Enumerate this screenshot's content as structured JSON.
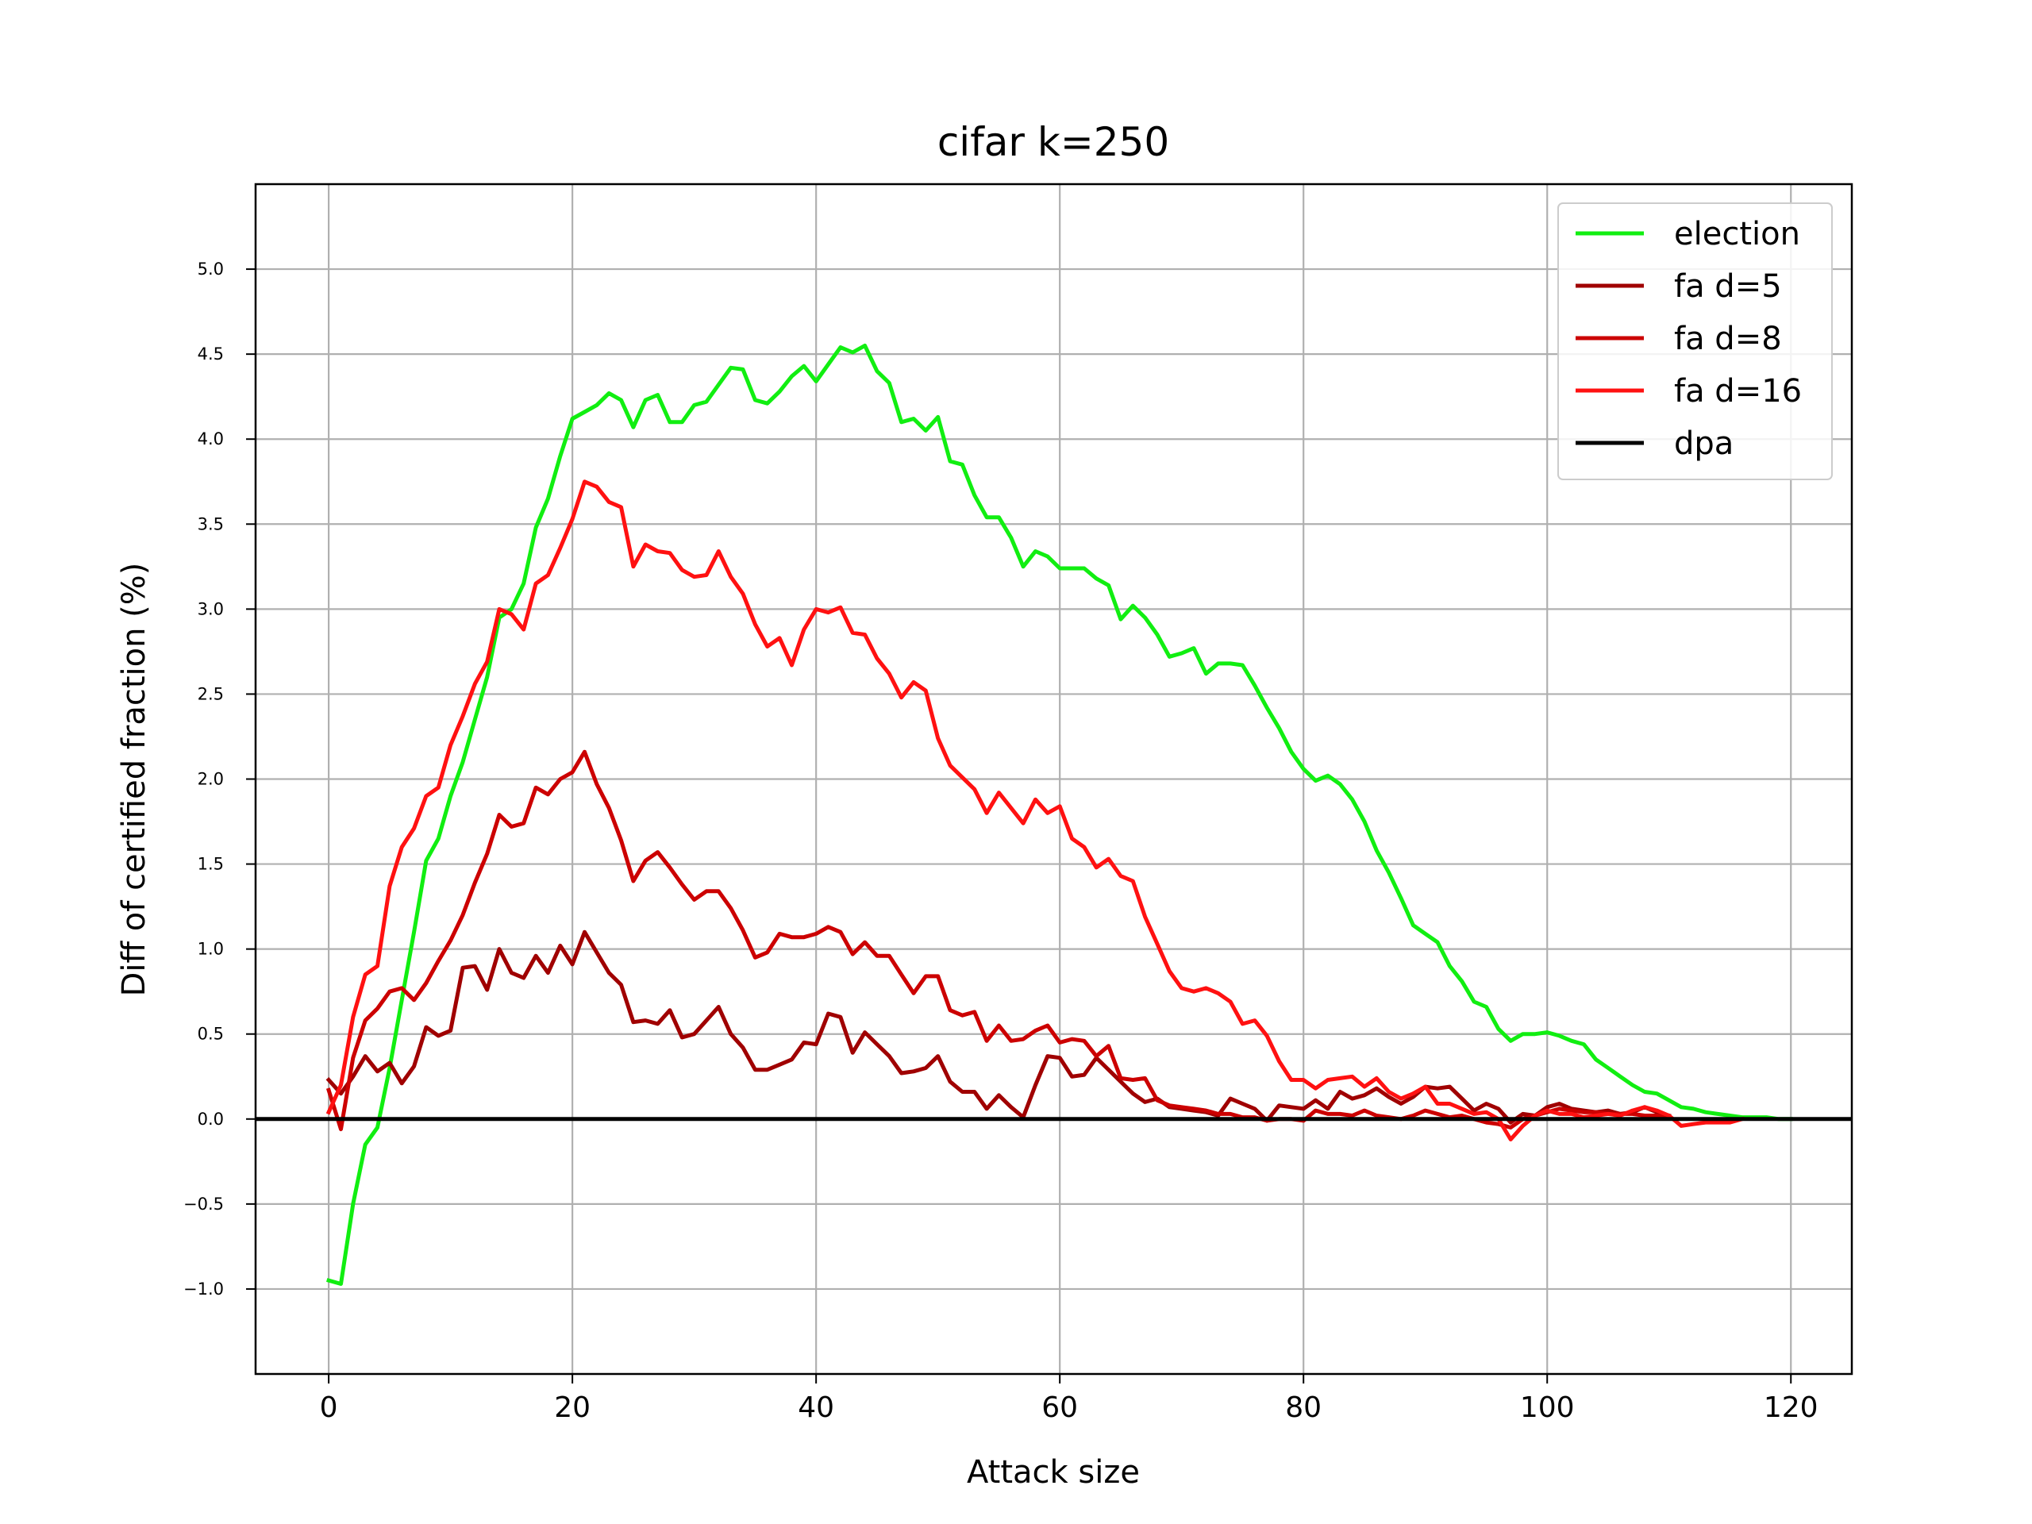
{
  "chart_data": {
    "type": "line",
    "title": "cifar k=250",
    "xlabel": "Attack size",
    "ylabel": "Diff of certified fraction (%)",
    "xlim": [
      -6,
      125
    ],
    "ylim": [
      -1.5,
      5.5
    ],
    "xticks": [
      0,
      20,
      40,
      60,
      80,
      100,
      120
    ],
    "xtick_labels": [
      "0",
      "20",
      "40",
      "60",
      "80",
      "100",
      "120"
    ],
    "yticks": [
      -1.0,
      -0.5,
      0.0,
      0.5,
      1.0,
      1.5,
      2.0,
      2.5,
      3.0,
      3.5,
      4.0,
      4.5,
      5.0
    ],
    "ytick_labels": [
      "−1.0",
      "−0.5",
      "0.0",
      "0.5",
      "1.0",
      "1.5",
      "2.0",
      "2.5",
      "3.0",
      "3.5",
      "4.0",
      "4.5",
      "5.0"
    ],
    "grid": true,
    "legend_position": "top-right",
    "series": [
      {
        "name": "election",
        "color": "#11ee11",
        "x": [
          0,
          1,
          2,
          3,
          4,
          5,
          6,
          7,
          8,
          9,
          10,
          11,
          12,
          13,
          14,
          15,
          16,
          17,
          18,
          19,
          20,
          21,
          22,
          23,
          24,
          25,
          26,
          27,
          28,
          29,
          30,
          31,
          32,
          33,
          34,
          35,
          36,
          37,
          38,
          39,
          40,
          41,
          42,
          43,
          44,
          45,
          46,
          47,
          48,
          49,
          50,
          51,
          52,
          53,
          54,
          55,
          56,
          57,
          58,
          59,
          60,
          61,
          62,
          63,
          64,
          65,
          66,
          67,
          68,
          69,
          70,
          71,
          72,
          73,
          74,
          75,
          76,
          77,
          78,
          79,
          80,
          81,
          82,
          83,
          84,
          85,
          86,
          87,
          88,
          89,
          90,
          91,
          92,
          93,
          94,
          95,
          96,
          97,
          98,
          99,
          100,
          101,
          102,
          103,
          104,
          105,
          106,
          107,
          108,
          109,
          110,
          111,
          112,
          113,
          114,
          115,
          116,
          117,
          118,
          119,
          120
        ],
        "y": [
          -0.95,
          -0.97,
          -0.5,
          -0.15,
          -0.05,
          0.3,
          0.7,
          1.1,
          1.52,
          1.65,
          1.9,
          2.1,
          2.35,
          2.6,
          2.95,
          3.0,
          3.15,
          3.48,
          3.65,
          3.9,
          4.12,
          4.16,
          4.2,
          4.27,
          4.23,
          4.07,
          4.23,
          4.26,
          4.1,
          4.1,
          4.2,
          4.22,
          4.32,
          4.42,
          4.41,
          4.23,
          4.21,
          4.28,
          4.37,
          4.43,
          4.34,
          4.44,
          4.54,
          4.51,
          4.55,
          4.4,
          4.33,
          4.1,
          4.12,
          4.05,
          4.13,
          3.87,
          3.85,
          3.67,
          3.54,
          3.54,
          3.42,
          3.25,
          3.34,
          3.31,
          3.24,
          3.24,
          3.24,
          3.18,
          3.14,
          2.94,
          3.02,
          2.95,
          2.85,
          2.72,
          2.74,
          2.77,
          2.62,
          2.68,
          2.68,
          2.67,
          2.55,
          2.42,
          2.3,
          2.16,
          2.06,
          1.99,
          2.02,
          1.97,
          1.88,
          1.75,
          1.58,
          1.45,
          1.3,
          1.14,
          1.09,
          1.04,
          0.9,
          0.81,
          0.69,
          0.66,
          0.53,
          0.46,
          0.5,
          0.5,
          0.51,
          0.49,
          0.46,
          0.44,
          0.35,
          0.3,
          0.25,
          0.2,
          0.16,
          0.15,
          0.11,
          0.07,
          0.06,
          0.04,
          0.03,
          0.02,
          0.01,
          0.01,
          0.01,
          0.0,
          0.0
        ]
      },
      {
        "name": "fa d=5",
        "color": "#a00000",
        "x": [
          0,
          1,
          2,
          3,
          4,
          5,
          6,
          7,
          8,
          9,
          10,
          11,
          12,
          13,
          14,
          15,
          16,
          17,
          18,
          19,
          20,
          21,
          22,
          23,
          24,
          25,
          26,
          27,
          28,
          29,
          30,
          31,
          32,
          33,
          34,
          35,
          36,
          37,
          38,
          39,
          40,
          41,
          42,
          43,
          44,
          45,
          46,
          47,
          48,
          49,
          50,
          51,
          52,
          53,
          54,
          55,
          56,
          57,
          58,
          59,
          60,
          61,
          62,
          63,
          64,
          65,
          66,
          67,
          68,
          69,
          70,
          71,
          72,
          73,
          74,
          75,
          76,
          77,
          78,
          79,
          80,
          81,
          82,
          83,
          84,
          85,
          86,
          87,
          88,
          89,
          90,
          91,
          92,
          93,
          94,
          95,
          96,
          97,
          98,
          99,
          100,
          101,
          102,
          103,
          104,
          105,
          106,
          107,
          108,
          109,
          110
        ],
        "y": [
          0.23,
          0.15,
          0.25,
          0.37,
          0.28,
          0.33,
          0.21,
          0.31,
          0.54,
          0.49,
          0.52,
          0.89,
          0.9,
          0.76,
          1.0,
          0.86,
          0.83,
          0.96,
          0.86,
          1.02,
          0.91,
          1.1,
          0.98,
          0.86,
          0.79,
          0.57,
          0.58,
          0.56,
          0.64,
          0.48,
          0.5,
          0.58,
          0.66,
          0.5,
          0.42,
          0.29,
          0.29,
          0.32,
          0.35,
          0.45,
          0.44,
          0.62,
          0.6,
          0.39,
          0.51,
          0.44,
          0.37,
          0.27,
          0.28,
          0.3,
          0.37,
          0.22,
          0.16,
          0.16,
          0.06,
          0.14,
          0.07,
          0.01,
          0.2,
          0.37,
          0.36,
          0.25,
          0.26,
          0.36,
          0.29,
          0.22,
          0.15,
          0.1,
          0.12,
          0.07,
          0.06,
          0.05,
          0.04,
          0.02,
          0.12,
          0.09,
          0.06,
          -0.01,
          0.08,
          0.07,
          0.06,
          0.11,
          0.06,
          0.16,
          0.12,
          0.14,
          0.18,
          0.13,
          0.09,
          0.13,
          0.19,
          0.18,
          0.19,
          0.12,
          0.05,
          0.09,
          0.06,
          -0.02,
          0.03,
          0.02,
          0.07,
          0.09,
          0.06,
          0.05,
          0.04,
          0.05,
          0.03,
          0.04,
          0.07,
          0.04,
          0.02
        ]
      },
      {
        "name": "fa d=8",
        "color": "#cc0000",
        "x": [
          0,
          1,
          2,
          3,
          4,
          5,
          6,
          7,
          8,
          9,
          10,
          11,
          12,
          13,
          14,
          15,
          16,
          17,
          18,
          19,
          20,
          21,
          22,
          23,
          24,
          25,
          26,
          27,
          28,
          29,
          30,
          31,
          32,
          33,
          34,
          35,
          36,
          37,
          38,
          39,
          40,
          41,
          42,
          43,
          44,
          45,
          46,
          47,
          48,
          49,
          50,
          51,
          52,
          53,
          54,
          55,
          56,
          57,
          58,
          59,
          60,
          61,
          62,
          63,
          64,
          65,
          66,
          67,
          68,
          69,
          70,
          71,
          72,
          73,
          74,
          75,
          76,
          77,
          78,
          79,
          80,
          81,
          82,
          83,
          84,
          85,
          86,
          87,
          88,
          89,
          90,
          91,
          92,
          93,
          94,
          95,
          96,
          97,
          98,
          99,
          100,
          101,
          102,
          103,
          104,
          105,
          106,
          107,
          108,
          109,
          110
        ],
        "y": [
          0.17,
          -0.06,
          0.36,
          0.58,
          0.65,
          0.75,
          0.77,
          0.7,
          0.8,
          0.93,
          1.05,
          1.2,
          1.39,
          1.56,
          1.79,
          1.72,
          1.74,
          1.95,
          1.91,
          2.0,
          2.04,
          2.16,
          1.97,
          1.83,
          1.64,
          1.4,
          1.52,
          1.57,
          1.48,
          1.38,
          1.29,
          1.34,
          1.34,
          1.24,
          1.11,
          0.95,
          0.98,
          1.09,
          1.07,
          1.07,
          1.09,
          1.13,
          1.1,
          0.97,
          1.04,
          0.96,
          0.96,
          0.85,
          0.74,
          0.84,
          0.84,
          0.64,
          0.61,
          0.63,
          0.46,
          0.55,
          0.46,
          0.47,
          0.52,
          0.55,
          0.45,
          0.47,
          0.46,
          0.37,
          0.43,
          0.24,
          0.23,
          0.24,
          0.11,
          0.08,
          0.07,
          0.06,
          0.05,
          0.03,
          0.03,
          0.01,
          0.01,
          -0.01,
          0.0,
          0.0,
          -0.01,
          0.05,
          0.03,
          0.03,
          0.02,
          0.05,
          0.02,
          0.01,
          0.0,
          0.02,
          0.05,
          0.03,
          0.01,
          0.02,
          0.0,
          -0.02,
          -0.03,
          -0.05,
          0.0,
          0.02,
          0.04,
          0.06,
          0.05,
          0.04,
          0.04,
          0.03,
          0.03,
          0.03,
          0.02,
          0.02,
          0.01
        ]
      },
      {
        "name": "fa d=16",
        "color": "#ff1111",
        "x": [
          0,
          1,
          2,
          3,
          4,
          5,
          6,
          7,
          8,
          9,
          10,
          11,
          12,
          13,
          14,
          15,
          16,
          17,
          18,
          19,
          20,
          21,
          22,
          23,
          24,
          25,
          26,
          27,
          28,
          29,
          30,
          31,
          32,
          33,
          34,
          35,
          36,
          37,
          38,
          39,
          40,
          41,
          42,
          43,
          44,
          45,
          46,
          47,
          48,
          49,
          50,
          51,
          52,
          53,
          54,
          55,
          56,
          57,
          58,
          59,
          60,
          61,
          62,
          63,
          64,
          65,
          66,
          67,
          68,
          69,
          70,
          71,
          72,
          73,
          74,
          75,
          76,
          77,
          78,
          79,
          80,
          81,
          82,
          83,
          84,
          85,
          86,
          87,
          88,
          89,
          90,
          91,
          92,
          93,
          94,
          95,
          96,
          97,
          98,
          99,
          100,
          101,
          102,
          103,
          104,
          105,
          106,
          107,
          108,
          109,
          110,
          111,
          112,
          113,
          114,
          115,
          116
        ],
        "y": [
          0.04,
          0.2,
          0.6,
          0.85,
          0.9,
          1.37,
          1.6,
          1.71,
          1.9,
          1.95,
          2.2,
          2.37,
          2.56,
          2.69,
          3.0,
          2.97,
          2.88,
          3.15,
          3.2,
          3.36,
          3.53,
          3.75,
          3.72,
          3.63,
          3.6,
          3.25,
          3.38,
          3.34,
          3.33,
          3.23,
          3.19,
          3.2,
          3.34,
          3.19,
          3.09,
          2.91,
          2.78,
          2.83,
          2.67,
          2.88,
          3.0,
          2.98,
          3.01,
          2.86,
          2.85,
          2.71,
          2.62,
          2.48,
          2.57,
          2.52,
          2.24,
          2.08,
          2.01,
          1.94,
          1.8,
          1.92,
          1.83,
          1.74,
          1.88,
          1.8,
          1.84,
          1.65,
          1.6,
          1.48,
          1.53,
          1.43,
          1.4,
          1.19,
          1.03,
          0.87,
          0.77,
          0.75,
          0.77,
          0.74,
          0.69,
          0.56,
          0.58,
          0.49,
          0.34,
          0.23,
          0.23,
          0.18,
          0.23,
          0.24,
          0.25,
          0.19,
          0.24,
          0.16,
          0.12,
          0.15,
          0.19,
          0.09,
          0.09,
          0.06,
          0.03,
          0.04,
          0.0,
          -0.12,
          -0.04,
          0.02,
          0.05,
          0.03,
          0.03,
          0.01,
          0.02,
          0.03,
          0.02,
          0.05,
          0.07,
          0.05,
          0.02,
          -0.04,
          -0.03,
          -0.02,
          -0.02,
          -0.02,
          0.0
        ]
      },
      {
        "name": "dpa",
        "color": "#000000",
        "x": [
          -6,
          125
        ],
        "y": [
          0,
          0
        ]
      }
    ]
  }
}
